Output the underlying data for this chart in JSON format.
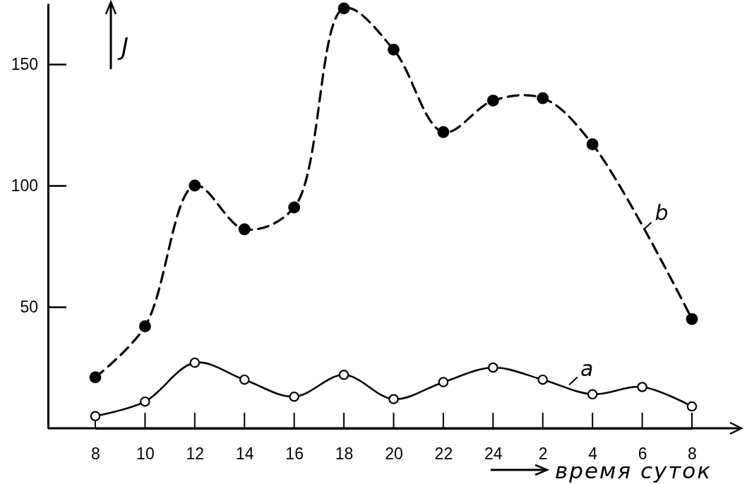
{
  "chart_data": {
    "type": "line",
    "xlabel": "время суток",
    "ylabel": "J",
    "categories": [
      "8",
      "10",
      "12",
      "14",
      "16",
      "18",
      "20",
      "22",
      "24",
      "2",
      "4",
      "6",
      "8"
    ],
    "series": [
      {
        "name": "a",
        "color": "#000000",
        "line_style": "solid",
        "values": [
          5,
          11,
          27,
          20,
          13,
          22,
          12,
          19,
          25,
          20,
          14,
          17,
          9
        ]
      },
      {
        "name": "b",
        "color": "#000000",
        "line_style": "dashed",
        "values": [
          21,
          42,
          100,
          82,
          91,
          173,
          156,
          122,
          135,
          136,
          117,
          null,
          45
        ]
      }
    ],
    "ylim": [
      0,
      175
    ],
    "yticks": [
      50,
      100,
      150
    ],
    "marker": "circle",
    "legend": "right"
  }
}
